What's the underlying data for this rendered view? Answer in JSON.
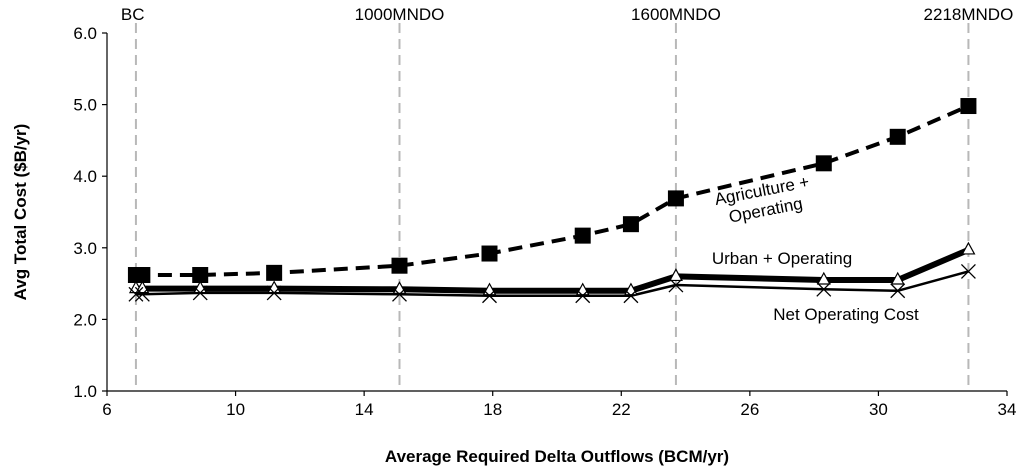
{
  "chart_data": {
    "type": "line",
    "title": "",
    "xlabel": "Average Required Delta Outflows (BCM/yr)",
    "ylabel": "Avg Total Cost ($B/yr)",
    "xlim": [
      6,
      34
    ],
    "ylim": [
      1.0,
      6.0
    ],
    "x_ticks": [
      "6",
      "10",
      "14",
      "18",
      "22",
      "26",
      "30",
      "34"
    ],
    "y_ticks": [
      "1.0",
      "2.0",
      "3.0",
      "4.0",
      "5.0",
      "6.0"
    ],
    "grid": false,
    "reference_lines": [
      {
        "x": 6.9,
        "label": "BC"
      },
      {
        "x": 15.1,
        "label": "1000MNDO"
      },
      {
        "x": 23.7,
        "label": "1600MNDO"
      },
      {
        "x": 32.8,
        "label": "2218MNDO"
      }
    ],
    "series": [
      {
        "name": "Agriculture + Operating",
        "label_lines": [
          "Agriculture +",
          "Operating"
        ],
        "marker": "square",
        "style": "dashed",
        "points": [
          [
            6.9,
            2.62
          ],
          [
            7.1,
            2.62
          ],
          [
            8.9,
            2.62
          ],
          [
            11.2,
            2.65
          ],
          [
            15.1,
            2.75
          ],
          [
            17.9,
            2.92
          ],
          [
            20.8,
            3.17
          ],
          [
            22.3,
            3.33
          ],
          [
            23.7,
            3.69
          ],
          [
            28.3,
            4.18
          ],
          [
            30.6,
            4.55
          ],
          [
            32.8,
            4.98
          ]
        ]
      },
      {
        "name": "Urban + Operating",
        "label_lines": [
          "Urban + Operating"
        ],
        "marker": "triangle",
        "style": "solid-thick",
        "points": [
          [
            6.9,
            2.43
          ],
          [
            7.1,
            2.43
          ],
          [
            8.9,
            2.43
          ],
          [
            11.2,
            2.43
          ],
          [
            15.1,
            2.42
          ],
          [
            17.9,
            2.4
          ],
          [
            20.8,
            2.4
          ],
          [
            22.3,
            2.4
          ],
          [
            23.7,
            2.6
          ],
          [
            28.3,
            2.55
          ],
          [
            30.6,
            2.55
          ],
          [
            32.8,
            2.97
          ]
        ]
      },
      {
        "name": "Net Operating Cost",
        "label_lines": [
          "Net Operating Cost"
        ],
        "marker": "x",
        "style": "solid",
        "points": [
          [
            6.9,
            2.35
          ],
          [
            7.1,
            2.35
          ],
          [
            8.9,
            2.37
          ],
          [
            11.2,
            2.37
          ],
          [
            15.1,
            2.35
          ],
          [
            17.9,
            2.33
          ],
          [
            20.8,
            2.33
          ],
          [
            22.3,
            2.33
          ],
          [
            23.7,
            2.48
          ],
          [
            28.3,
            2.42
          ],
          [
            30.6,
            2.4
          ],
          [
            32.8,
            2.67
          ]
        ]
      }
    ]
  }
}
